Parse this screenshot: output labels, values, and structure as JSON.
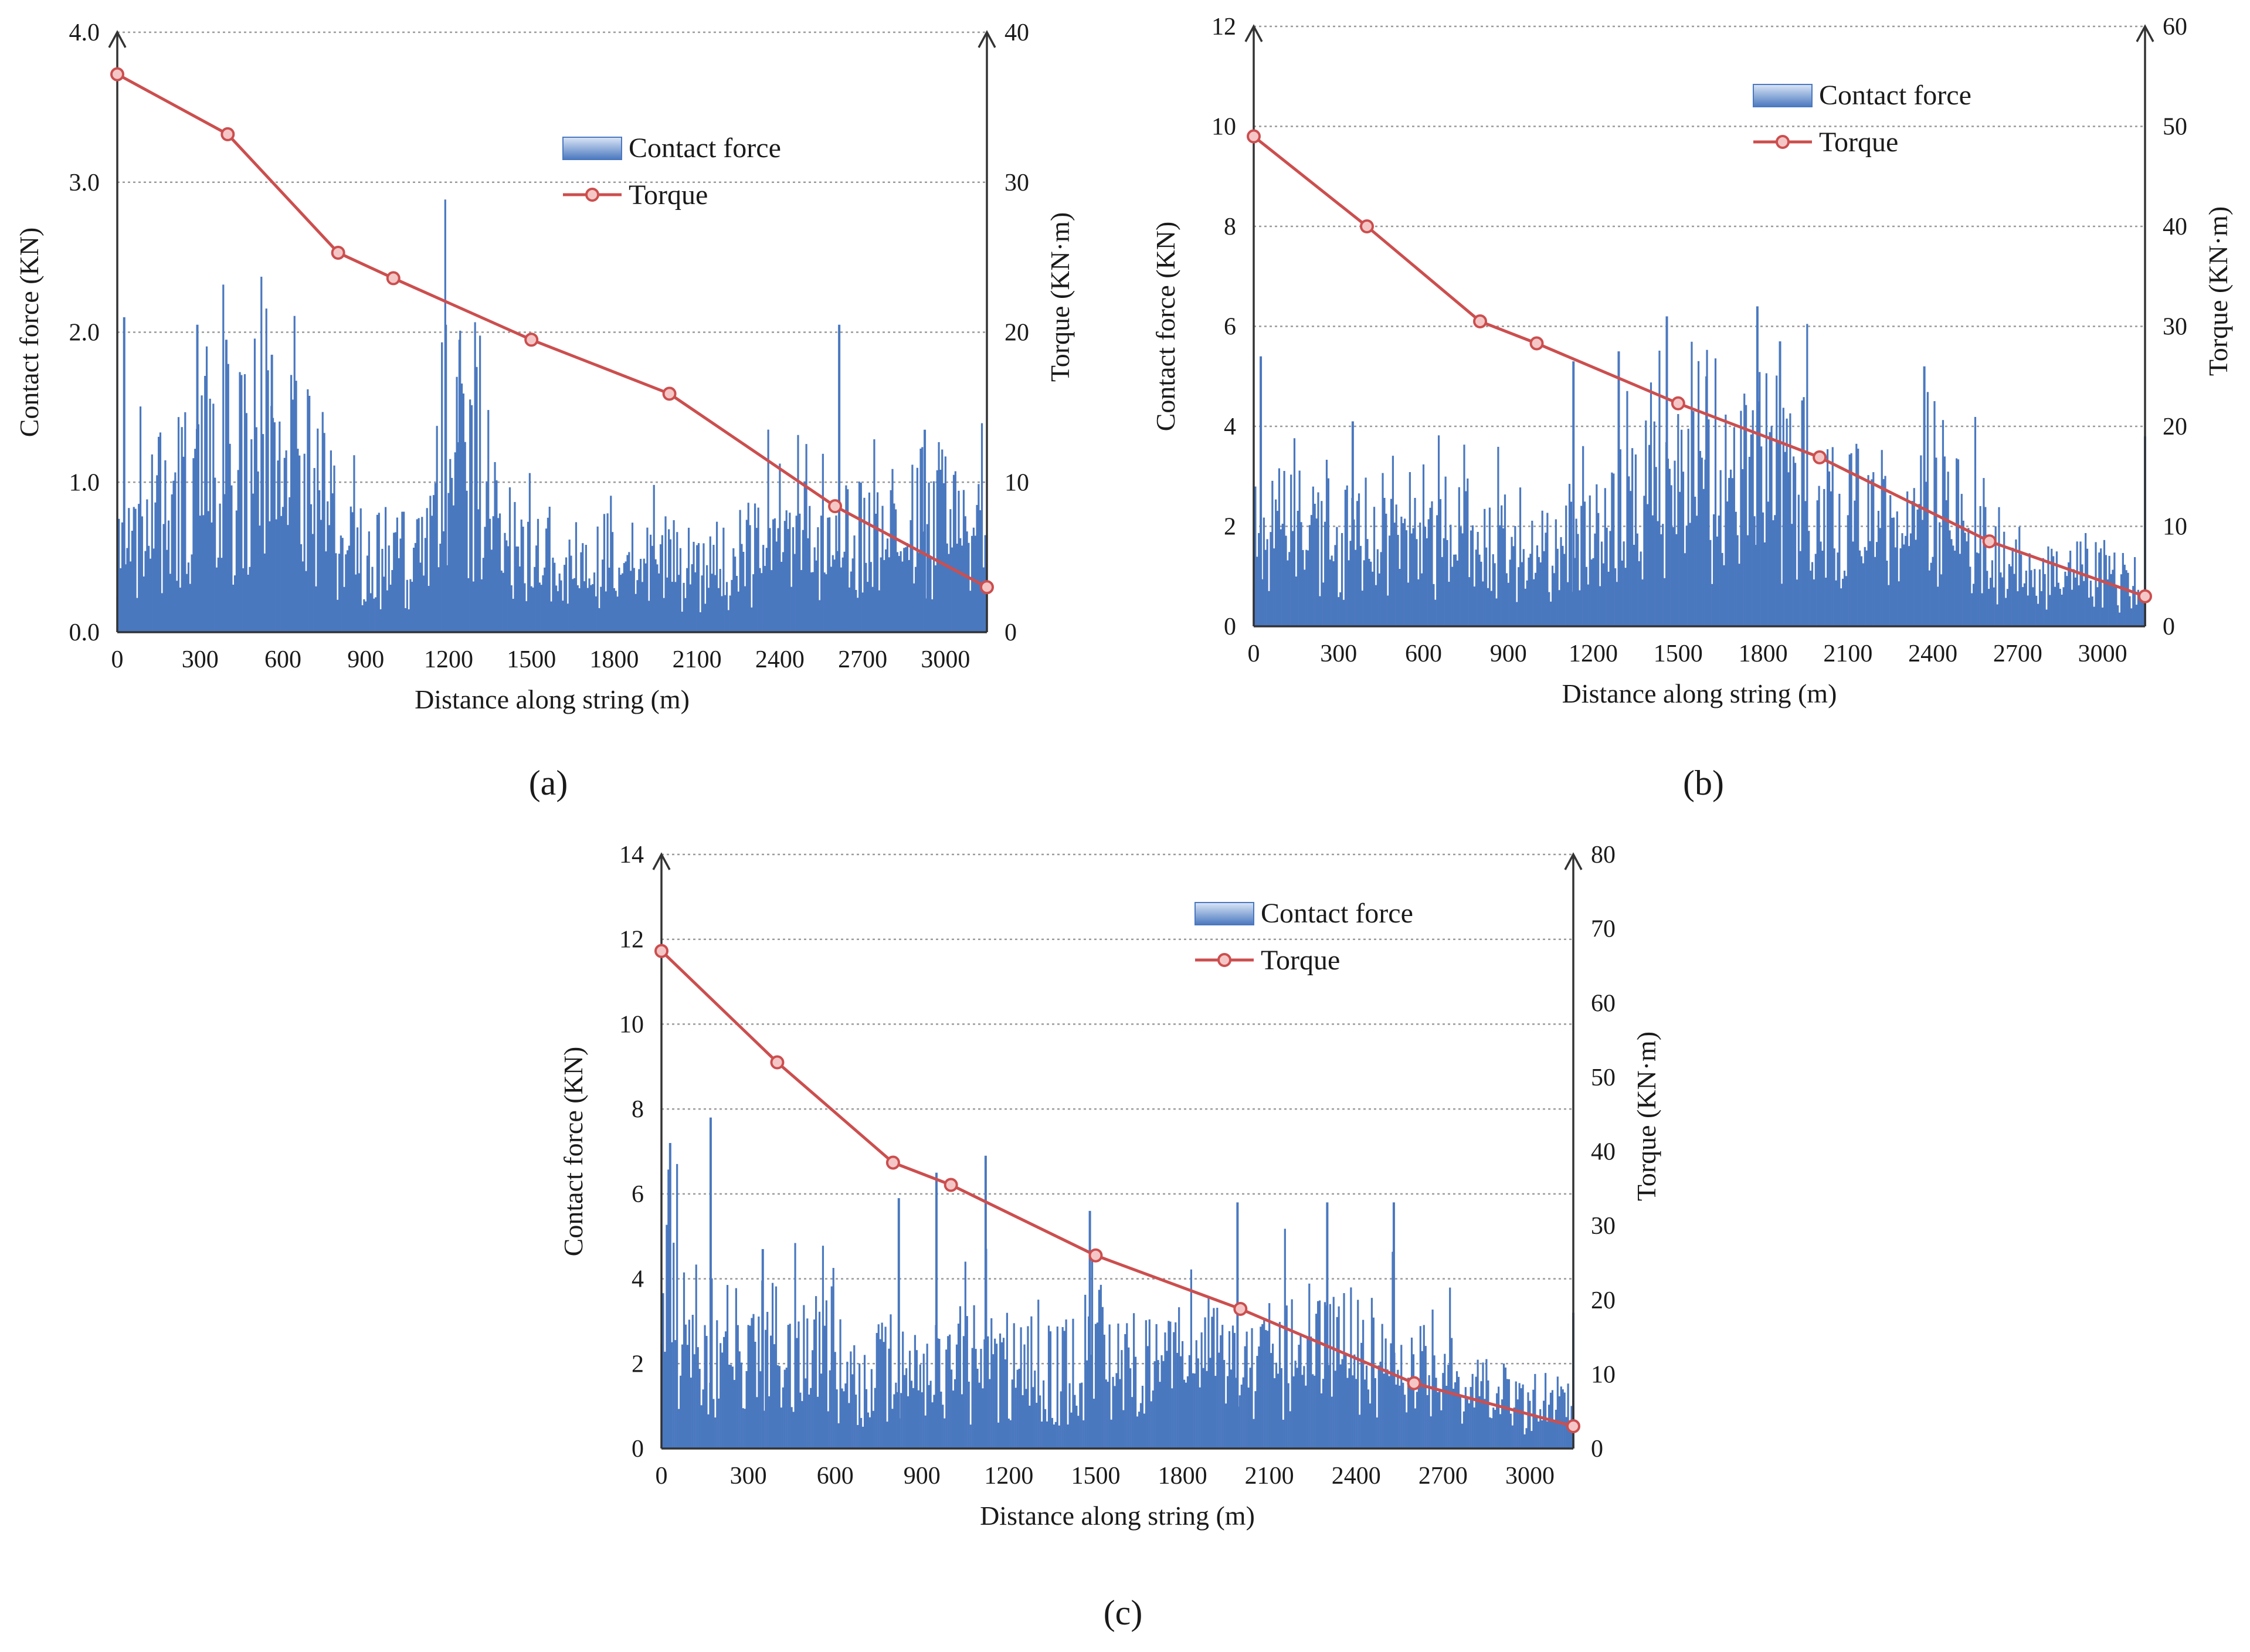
{
  "colors": {
    "contact_force": "#4a78bf",
    "contact_force_legend_light": "#dbe6f7",
    "torque": "#cc4e4e",
    "torque_marker_fill": "#f5c6c6"
  },
  "chart_data": [
    {
      "type": "bar+line",
      "panel_label": "(a)",
      "xlabel": "Distance along string (m)",
      "ylabel_left": "Contact force (KN)",
      "ylabel_right": "Torque (KN·m)",
      "xlim": [
        0,
        3150
      ],
      "xticks": [
        "0",
        "300",
        "600",
        "900",
        "1200",
        "1500",
        "1800",
        "2100",
        "2400",
        "2700",
        "3000"
      ],
      "ylim_left": [
        0,
        4
      ],
      "yticks_left": [
        "0.0",
        "1.0",
        "2.0",
        "3.0",
        "4.0"
      ],
      "ylim_right": [
        0,
        40
      ],
      "yticks_right": [
        "0",
        "10",
        "20",
        "30",
        "40"
      ],
      "grid": "horizontal dotted",
      "legend": {
        "position": "top-center",
        "entries": [
          "Contact force",
          "Torque"
        ]
      },
      "series": [
        {
          "name": "Contact force",
          "axis": "left",
          "kind": "bar",
          "x": [
            0,
            100,
            200,
            300,
            400,
            500,
            600,
            700,
            800,
            900,
            1000,
            1100,
            1200,
            1300,
            1400,
            1500,
            1600,
            1700,
            1800,
            1900,
            2000,
            2100,
            2200,
            2300,
            2400,
            2500,
            2600,
            2700,
            2800,
            2900,
            3000,
            3100,
            3150
          ],
          "values": [
            0.7,
            1.0,
            1.2,
            1.35,
            1.6,
            1.4,
            1.6,
            1.4,
            1.0,
            0.7,
            0.7,
            0.7,
            1.9,
            1.5,
            0.75,
            0.65,
            0.6,
            0.62,
            0.68,
            0.7,
            0.65,
            0.62,
            0.62,
            0.8,
            0.95,
            0.85,
            0.85,
            0.9,
            0.95,
            1.1,
            1.05,
            0.88,
            0.88
          ],
          "peaks": [
            [
              25,
              2.1
            ],
            [
              290,
              2.05
            ],
            [
              395,
              1.95
            ],
            [
              560,
              1.85
            ],
            [
              1190,
              2.05
            ],
            [
              1240,
              1.95
            ],
            [
              2615,
              2.05
            ],
            [
              2925,
              1.35
            ]
          ]
        },
        {
          "name": "Torque",
          "axis": "right",
          "kind": "line",
          "x": [
            0,
            400,
            800,
            1000,
            1500,
            2000,
            2600,
            3150
          ],
          "values": [
            37.2,
            33.2,
            25.3,
            23.6,
            19.5,
            15.9,
            8.4,
            3.0
          ]
        }
      ]
    },
    {
      "type": "bar+line",
      "panel_label": "(b)",
      "xlabel": "Distance along string (m)",
      "ylabel_left": "Contact force (KN)",
      "ylabel_right": "Torque (KN·m)",
      "xlim": [
        0,
        3150
      ],
      "xticks": [
        "0",
        "300",
        "600",
        "900",
        "1200",
        "1500",
        "1800",
        "2100",
        "2400",
        "2700",
        "3000"
      ],
      "ylim_left": [
        0,
        12
      ],
      "yticks_left": [
        "0",
        "2",
        "4",
        "6",
        "8",
        "10",
        "12"
      ],
      "ylim_right": [
        0,
        60
      ],
      "yticks_right": [
        "0",
        "10",
        "20",
        "30",
        "40",
        "50",
        "60"
      ],
      "grid": "horizontal dotted",
      "legend": {
        "position": "top-right",
        "entries": [
          "Contact force",
          "Torque"
        ]
      },
      "series": [
        {
          "name": "Contact force",
          "axis": "left",
          "kind": "bar",
          "x": [
            0,
            100,
            200,
            300,
            400,
            500,
            600,
            700,
            800,
            900,
            1000,
            1100,
            1200,
            1300,
            1400,
            1500,
            1600,
            1700,
            1800,
            1900,
            2000,
            2100,
            2200,
            2300,
            2400,
            2500,
            2600,
            2700,
            2800,
            2900,
            3000,
            3100,
            3150
          ],
          "values": [
            3.0,
            2.8,
            2.7,
            2.6,
            2.8,
            2.4,
            2.4,
            2.5,
            2.4,
            2.3,
            2.4,
            2.3,
            2.4,
            2.8,
            3.6,
            3.8,
            3.8,
            3.9,
            4.3,
            4.1,
            3.6,
            3.2,
            2.9,
            3.5,
            4.0,
            3.0,
            2.3,
            1.7,
            1.6,
            1.6,
            1.5,
            1.2,
            1.1
          ],
          "peaks": [
            [
              25,
              5.4
            ],
            [
              350,
              4.1
            ],
            [
              1130,
              5.3
            ],
            [
              1290,
              5.5
            ],
            [
              1460,
              6.2
            ],
            [
              1600,
              5.0
            ],
            [
              1780,
              6.4
            ],
            [
              1860,
              5.7
            ],
            [
              2370,
              5.2
            ],
            [
              3150,
              3.8
            ]
          ]
        },
        {
          "name": "Torque",
          "axis": "right",
          "kind": "line",
          "x": [
            0,
            400,
            800,
            1000,
            1500,
            2000,
            2600,
            3150
          ],
          "values": [
            49.0,
            40.0,
            30.5,
            28.3,
            22.3,
            16.9,
            8.5,
            3.0
          ]
        }
      ]
    },
    {
      "type": "bar+line",
      "panel_label": "(c)",
      "xlabel": "Distance along string (m)",
      "ylabel_left": "Contact force (KN)",
      "ylabel_right": "Torque (KN·m)",
      "xlim": [
        0,
        3150
      ],
      "xticks": [
        "0",
        "300",
        "600",
        "900",
        "1200",
        "1500",
        "1800",
        "2100",
        "2400",
        "2700",
        "3000"
      ],
      "ylim_left": [
        0,
        14
      ],
      "yticks_left": [
        "0",
        "2",
        "4",
        "6",
        "8",
        "10",
        "12",
        "14"
      ],
      "ylim_right": [
        0,
        80
      ],
      "yticks_right": [
        "0",
        "10",
        "20",
        "30",
        "40",
        "50",
        "60",
        "70",
        "80"
      ],
      "grid": "horizontal dotted",
      "legend": {
        "position": "top-right",
        "entries": [
          "Contact force",
          "Torque"
        ]
      },
      "series": [
        {
          "name": "Contact force",
          "axis": "left",
          "kind": "bar",
          "x": [
            0,
            100,
            200,
            300,
            400,
            500,
            600,
            700,
            800,
            900,
            1000,
            1100,
            1200,
            1300,
            1400,
            1500,
            1600,
            1700,
            1800,
            1900,
            2000,
            2100,
            2200,
            2300,
            2400,
            2500,
            2600,
            2700,
            2800,
            2900,
            3000,
            3100,
            3150
          ],
          "values": [
            4.5,
            4.0,
            3.5,
            3.4,
            3.3,
            3.1,
            2.9,
            2.5,
            2.7,
            2.6,
            2.6,
            2.9,
            2.9,
            2.3,
            2.6,
            3.0,
            2.7,
            2.6,
            3.0,
            3.0,
            2.8,
            2.9,
            3.4,
            3.3,
            3.6,
            3.0,
            2.6,
            2.4,
            2.0,
            1.8,
            1.6,
            1.5,
            1.2
          ],
          "peaks": [
            [
              30,
              7.2
            ],
            [
              170,
              7.8
            ],
            [
              350,
              4.7
            ],
            [
              820,
              5.9
            ],
            [
              950,
              6.5
            ],
            [
              1120,
              6.9
            ],
            [
              1480,
              5.6
            ],
            [
              1990,
              5.8
            ],
            [
              2300,
              5.8
            ],
            [
              2530,
              5.8
            ],
            [
              3150,
              3.2
            ]
          ]
        },
        {
          "name": "Torque",
          "axis": "right",
          "kind": "line",
          "x": [
            0,
            400,
            800,
            1000,
            1500,
            2000,
            2600,
            3150
          ],
          "values": [
            67.0,
            52.0,
            38.5,
            35.5,
            26.0,
            18.8,
            8.8,
            3.0
          ]
        }
      ]
    }
  ]
}
